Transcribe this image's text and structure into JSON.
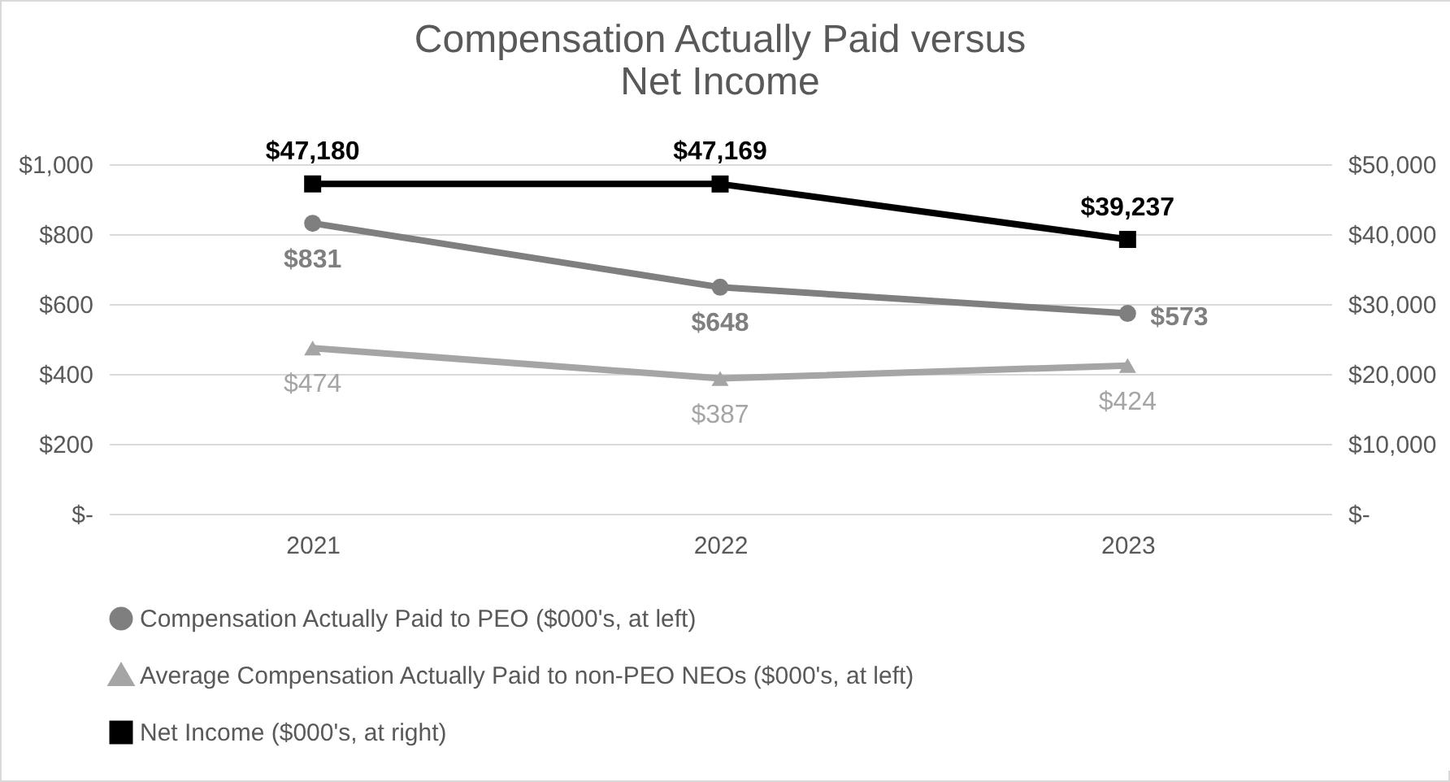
{
  "chart_data": {
    "type": "line",
    "title": "Compensation Actually Paid versus Net Income",
    "categories": [
      "2021",
      "2022",
      "2023"
    ],
    "series": [
      {
        "name": "Compensation Actually Paid to PEO ($000's, at left)",
        "color": "#7f7f7f",
        "marker": "circle",
        "values": [
          831,
          648,
          573
        ],
        "value_labels": [
          "$831",
          "$648",
          "$573"
        ]
      },
      {
        "name": "Average Compensation Actually Paid to non-PEO NEOs ($000's, at left)",
        "color": "#a5a5a5",
        "marker": "triangle",
        "values": [
          474,
          387,
          424
        ],
        "value_labels": [
          "$474",
          "$387",
          "$424"
        ]
      },
      {
        "name": "Net Income ($000's, at right)",
        "color": "#000000",
        "marker": "square",
        "axis": "y2",
        "values": [
          47180,
          47169,
          39237
        ],
        "value_labels": [
          "$47,180",
          "$47,169",
          "$39,237"
        ]
      }
    ],
    "ylim": [
      0,
      1000
    ],
    "yticks": [
      {
        "value": 0,
        "label": "$-"
      },
      {
        "value": 200,
        "label": "$200"
      },
      {
        "value": 400,
        "label": "$400"
      },
      {
        "value": 600,
        "label": "$600"
      },
      {
        "value": 800,
        "label": "$800"
      },
      {
        "value": 1000,
        "label": "$1,000"
      }
    ],
    "y2lim": [
      0,
      50000
    ],
    "y2ticks": [
      {
        "value": 0,
        "label": "$-"
      },
      {
        "value": 10000,
        "label": "$10,000"
      },
      {
        "value": 20000,
        "label": "$20,000"
      },
      {
        "value": 30000,
        "label": "$30,000"
      },
      {
        "value": 40000,
        "label": "$40,000"
      },
      {
        "value": 50000,
        "label": "$50,000"
      }
    ],
    "grid": "y",
    "legend": "bottom"
  }
}
